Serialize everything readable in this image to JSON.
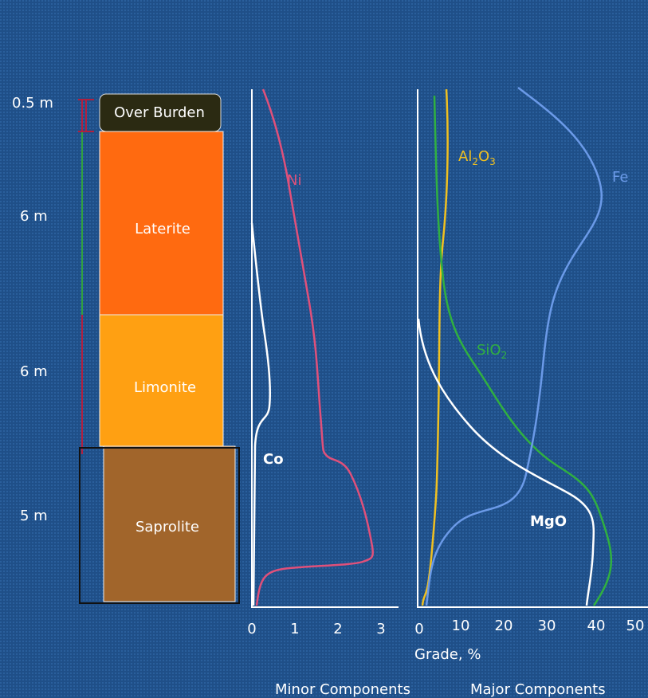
{
  "depths": [
    "0.5 m",
    "6 m",
    "6 m",
    "5 m"
  ],
  "layers": [
    "Over Burden",
    "Laterite",
    "Limonite",
    "Saprolite"
  ],
  "minor_ticks": [
    "0",
    "1",
    "2",
    "3"
  ],
  "major_ticks": [
    "0",
    "10",
    "20",
    "30",
    "40",
    "50"
  ],
  "x_label": "Grade, %",
  "minor_label": "Minor Components",
  "major_label": "Major Components",
  "curve_labels": {
    "ni": "Ni",
    "co": "Co",
    "fe": "Fe",
    "mgo": "MgO",
    "al2o3": [
      "Al",
      "2",
      "O",
      "3"
    ],
    "sio2": [
      "SiO",
      "2"
    ]
  }
}
